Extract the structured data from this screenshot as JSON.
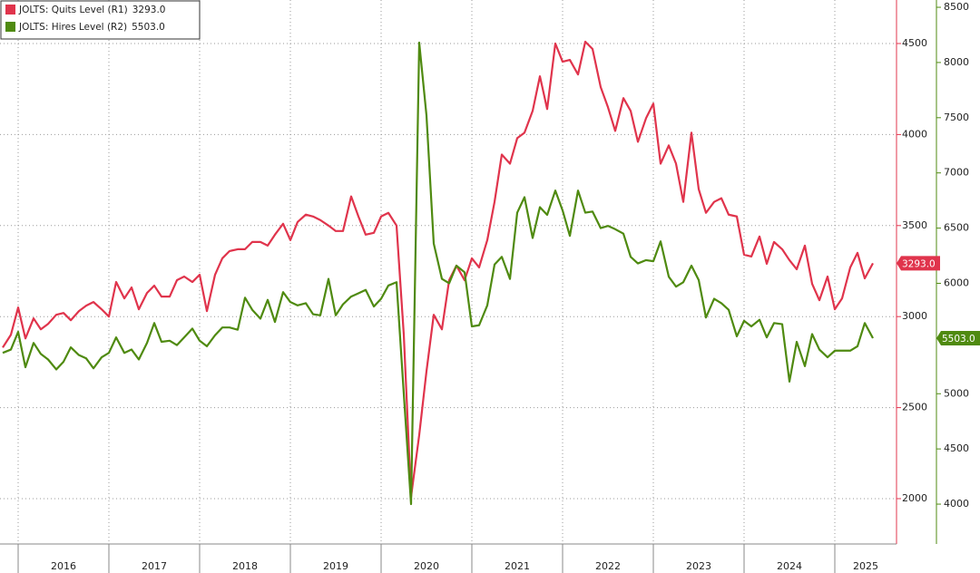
{
  "chart_data": {
    "type": "line",
    "x": [
      2015.83,
      2015.92,
      2016.0,
      2016.08,
      2016.17,
      2016.25,
      2016.33,
      2016.42,
      2016.5,
      2016.58,
      2016.67,
      2016.75,
      2016.83,
      2016.92,
      2017.0,
      2017.08,
      2017.17,
      2017.25,
      2017.33,
      2017.42,
      2017.5,
      2017.58,
      2017.67,
      2017.75,
      2017.83,
      2017.92,
      2018.0,
      2018.08,
      2018.17,
      2018.25,
      2018.33,
      2018.42,
      2018.5,
      2018.58,
      2018.67,
      2018.75,
      2018.83,
      2018.92,
      2019.0,
      2019.08,
      2019.17,
      2019.25,
      2019.33,
      2019.42,
      2019.5,
      2019.58,
      2019.67,
      2019.75,
      2019.83,
      2019.92,
      2020.0,
      2020.08,
      2020.17,
      2020.25,
      2020.33,
      2020.42,
      2020.5,
      2020.58,
      2020.67,
      2020.75,
      2020.83,
      2020.92,
      2021.0,
      2021.08,
      2021.17,
      2021.25,
      2021.33,
      2021.42,
      2021.5,
      2021.58,
      2021.67,
      2021.75,
      2021.83,
      2021.92,
      2022.0,
      2022.08,
      2022.17,
      2022.25,
      2022.33,
      2022.42,
      2022.5,
      2022.58,
      2022.67,
      2022.75,
      2022.83,
      2022.92,
      2023.0,
      2023.08,
      2023.17,
      2023.25,
      2023.33,
      2023.42,
      2023.5,
      2023.58,
      2023.67,
      2023.75,
      2023.83,
      2023.92,
      2024.0,
      2024.08,
      2024.17,
      2024.25,
      2024.33,
      2024.42,
      2024.5,
      2024.58,
      2024.67,
      2024.75,
      2024.83,
      2024.92,
      2025.0,
      2025.08,
      2025.17,
      2025.25,
      2025.33,
      2025.42
    ],
    "series": [
      {
        "name": "JOLTS: Quits Level (R1)",
        "last_label": "3293.0",
        "color": "#e0344c",
        "axis": "y",
        "values": [
          2830,
          2900,
          3050,
          2880,
          2990,
          2930,
          2960,
          3010,
          3020,
          2980,
          3030,
          3060,
          3080,
          3040,
          3000,
          3190,
          3100,
          3160,
          3040,
          3130,
          3170,
          3110,
          3110,
          3200,
          3220,
          3190,
          3230,
          3030,
          3230,
          3320,
          3360,
          3370,
          3370,
          3410,
          3410,
          3390,
          3450,
          3510,
          3420,
          3520,
          3560,
          3550,
          3530,
          3500,
          3470,
          3470,
          3660,
          3550,
          3450,
          3460,
          3550,
          3570,
          3500,
          2900,
          2010,
          2350,
          2700,
          3010,
          2930,
          3200,
          3280,
          3200,
          3320,
          3270,
          3420,
          3630,
          3890,
          3840,
          3980,
          4010,
          4130,
          4320,
          4140,
          4500,
          4400,
          4410,
          4330,
          4510,
          4470,
          4260,
          4150,
          4020,
          4200,
          4130,
          3960,
          4090,
          4170,
          3840,
          3940,
          3840,
          3630,
          4010,
          3700,
          3570,
          3630,
          3650,
          3560,
          3550,
          3340,
          3330,
          3440,
          3290,
          3410,
          3370,
          3310,
          3260,
          3390,
          3180,
          3090,
          3220,
          3040,
          3100,
          3270,
          3350,
          3210,
          3293
        ]
      },
      {
        "name": "JOLTS: Hires Level (R2)",
        "last_label": "5503.0",
        "color": "#4f8a10",
        "axis": "y2",
        "values": [
          5370,
          5400,
          5560,
          5240,
          5460,
          5360,
          5310,
          5220,
          5290,
          5420,
          5350,
          5320,
          5230,
          5330,
          5370,
          5510,
          5370,
          5400,
          5310,
          5460,
          5640,
          5470,
          5480,
          5440,
          5510,
          5590,
          5480,
          5430,
          5530,
          5600,
          5600,
          5580,
          5870,
          5760,
          5680,
          5850,
          5650,
          5920,
          5830,
          5800,
          5820,
          5720,
          5710,
          6040,
          5710,
          5810,
          5880,
          5910,
          5940,
          5790,
          5860,
          5980,
          6010,
          5000,
          4000,
          8180,
          7520,
          6360,
          6040,
          6000,
          6160,
          6100,
          5610,
          5620,
          5800,
          6170,
          6240,
          6040,
          6640,
          6780,
          6410,
          6690,
          6620,
          6840,
          6660,
          6430,
          6840,
          6640,
          6650,
          6500,
          6520,
          6490,
          6450,
          6240,
          6180,
          6210,
          6200,
          6380,
          6060,
          5970,
          6010,
          6160,
          6030,
          5690,
          5860,
          5820,
          5760,
          5520,
          5660,
          5610,
          5670,
          5510,
          5640,
          5630,
          5110,
          5470,
          5250,
          5540,
          5400,
          5330,
          5390,
          5390,
          5390,
          5430,
          5640,
          5503
        ]
      }
    ],
    "xlim": [
      2015.8,
      2025.68
    ],
    "xticks": [
      2016,
      2017,
      2018,
      2019,
      2020,
      2021,
      2022,
      2023,
      2024,
      2025
    ],
    "ylim": [
      1751,
      4739
    ],
    "yticks": [
      2000,
      2500,
      3000,
      3500,
      4000,
      4500
    ],
    "y2lim": [
      3639,
      8566
    ],
    "y2ticks": [
      4000,
      4500,
      5000,
      5500,
      6000,
      6500,
      7000,
      7500,
      8000,
      8500
    ],
    "grid": true,
    "legend": "top-left"
  }
}
